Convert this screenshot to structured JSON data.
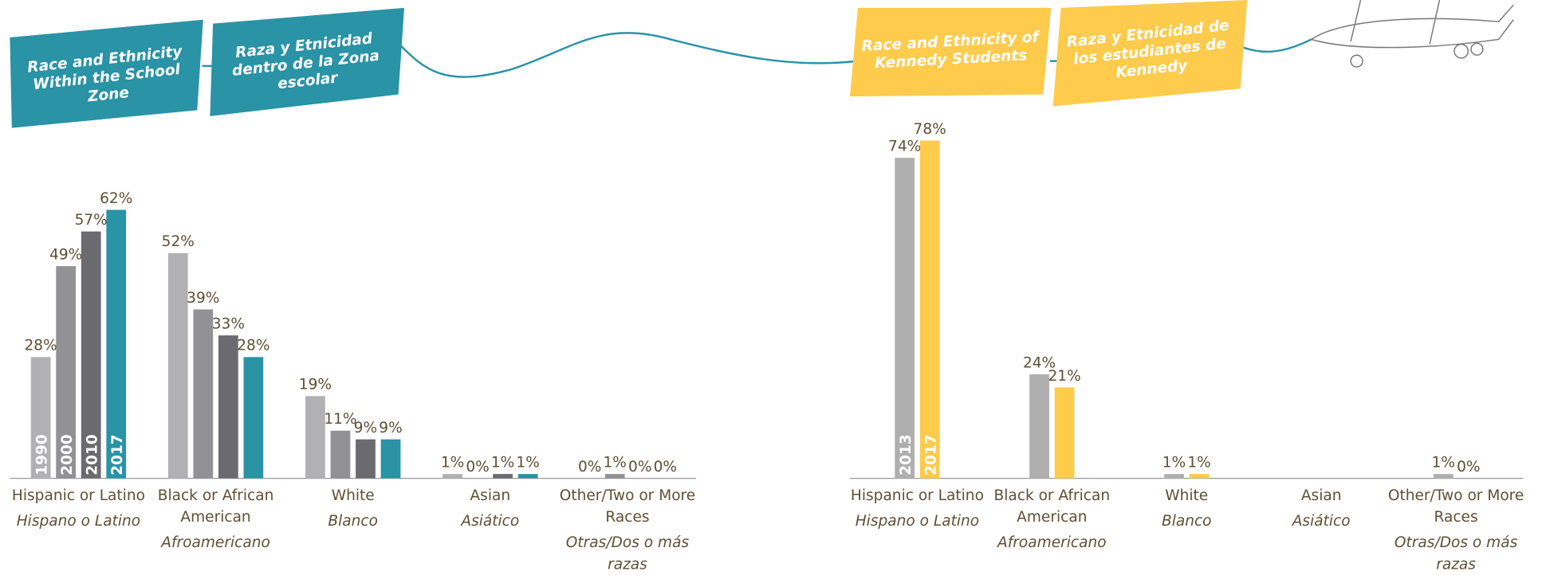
{
  "chart_data": [
    {
      "type": "bar",
      "title": "Race and Ethnicity Within the School Zone",
      "subtitle": "Raza y Etnicidad dentro de la Zona escolar",
      "categories": [
        "Hispanic or Latino",
        "Black or African American",
        "White",
        "Asian",
        "Other/Two or More Races"
      ],
      "categories_es": [
        "Hispano o Latino",
        "Afroamericano",
        "Blanco",
        "Asiático",
        "Otras/Dos o más razas"
      ],
      "series": [
        {
          "name": "1990",
          "color": "#b1b1b4",
          "values": [
            28,
            52,
            19,
            1,
            0
          ],
          "value_labels": [
            "28%",
            "52%",
            "19%",
            "1%",
            "0%"
          ]
        },
        {
          "name": "2000",
          "color": "#929295",
          "values": [
            49,
            39,
            11,
            0,
            1
          ],
          "value_labels": [
            "49%",
            "39%",
            "11%",
            "0%",
            "1%"
          ]
        },
        {
          "name": "2010",
          "color": "#6a6a6f",
          "values": [
            57,
            33,
            9,
            1,
            0
          ],
          "value_labels": [
            "57%",
            "33%",
            "9%",
            "1%",
            "0%"
          ]
        },
        {
          "name": "2017",
          "color": "#2a93a6",
          "values": [
            62,
            28,
            9,
            1,
            0
          ],
          "value_labels": [
            "62%",
            "28%",
            "9%",
            "1%",
            "0%"
          ]
        }
      ]
    },
    {
      "type": "bar",
      "title": "Race and Ethnicity of Kennedy Students",
      "subtitle": "Raza y Etnicidad de los estudiantes de Kennedy",
      "categories": [
        "Hispanic or Latino",
        "Black or African American",
        "White",
        "Asian",
        "Other/Two or More Races"
      ],
      "categories_es": [
        "Hispano o Latino",
        "Afroamericano",
        "Blanco",
        "Asiático",
        "Otras/Dos o más razas"
      ],
      "series": [
        {
          "name": "2013",
          "color": "#afafaf",
          "values": [
            74,
            24,
            1,
            null,
            1
          ],
          "value_labels": [
            "74%",
            "24%",
            "1%",
            null,
            "1%"
          ]
        },
        {
          "name": "2017",
          "color": "#fecb4d",
          "values": [
            78,
            21,
            1,
            null,
            0
          ],
          "value_labels": [
            "78%",
            "21%",
            "1%",
            null,
            "0%"
          ]
        }
      ]
    }
  ]
}
